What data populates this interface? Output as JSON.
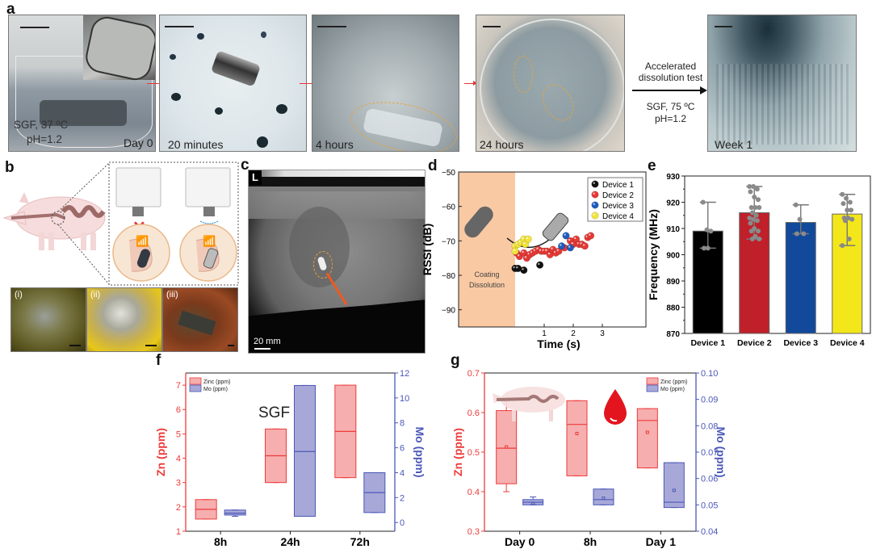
{
  "figure": {
    "panel_labels": {
      "a": "a",
      "b": "b",
      "c": "c",
      "d": "d",
      "e": "e",
      "f": "f",
      "g": "g"
    },
    "panel_a": {
      "photos": [
        {
          "caption": "Day 0",
          "overlay": "SGF, 37 ºC",
          "overlay2": "pH=1.2"
        },
        {
          "caption": "20 minutes"
        },
        {
          "caption": "4 hours"
        },
        {
          "caption": "24 hours"
        },
        {
          "caption": "Week 1"
        }
      ],
      "accelerated_label_1": "Accelerated",
      "accelerated_label_2": "dissolution test",
      "condition_1": "SGF, 75 ºC",
      "condition_2": "pH=1.2"
    },
    "panel_b": {
      "endoscopy_labels": [
        "(i)",
        "(ii)",
        "(iii)"
      ]
    },
    "panel_c": {
      "corner_label": "L",
      "scale_label": "20 mm"
    }
  },
  "chart_data": [
    {
      "id": "d",
      "type": "scatter",
      "title": "",
      "xlabel": "Time (s)",
      "ylabel": "RSSI (dB)",
      "ylim": [
        -95,
        -50
      ],
      "yticks": [
        -50,
        -60,
        -70,
        -80,
        -90
      ],
      "xticks": [
        1,
        2,
        3
      ],
      "shaded_region_label_1": "Coating",
      "shaded_region_label_2": "Dissolution",
      "legend": [
        "Device 1",
        "Device 2",
        "Device 3",
        "Device 4"
      ],
      "series": [
        {
          "name": "Device 1",
          "color": "#111111",
          "points": [
            [
              0.0,
              -78
            ],
            [
              0.1,
              -78
            ],
            [
              0.3,
              -78.5
            ],
            [
              0.85,
              -77
            ]
          ]
        },
        {
          "name": "Device 2",
          "color": "#e53935",
          "points": [
            [
              0.05,
              -73.5
            ],
            [
              0.15,
              -74.5
            ],
            [
              0.3,
              -73.5
            ],
            [
              0.4,
              -75
            ],
            [
              0.5,
              -74
            ],
            [
              0.6,
              -73.5
            ],
            [
              0.7,
              -73
            ],
            [
              0.8,
              -72.5
            ],
            [
              0.9,
              -73
            ],
            [
              1.0,
              -73
            ],
            [
              1.1,
              -73
            ],
            [
              1.2,
              -74
            ],
            [
              1.3,
              -72.5
            ],
            [
              1.4,
              -73.5
            ],
            [
              1.5,
              -73
            ],
            [
              1.7,
              -72
            ],
            [
              1.9,
              -70
            ],
            [
              2.0,
              -71
            ],
            [
              2.1,
              -69.5
            ],
            [
              2.2,
              -71
            ],
            [
              2.3,
              -71
            ],
            [
              2.4,
              -71.5
            ],
            [
              2.5,
              -69
            ],
            [
              2.6,
              -68.5
            ]
          ]
        },
        {
          "name": "Device 3",
          "color": "#1e5bbf",
          "points": [
            [
              1.6,
              -71.5
            ],
            [
              1.75,
              -68.5
            ],
            [
              1.9,
              -72
            ]
          ]
        },
        {
          "name": "Device 4",
          "color": "#f2e33c",
          "points": [
            [
              0.0,
              -71.5
            ],
            [
              0.0,
              -73
            ],
            [
              0.1,
              -71
            ],
            [
              0.2,
              -70.5
            ],
            [
              0.3,
              -69.5
            ],
            [
              0.35,
              -71
            ],
            [
              0.45,
              -69.5
            ]
          ]
        }
      ]
    },
    {
      "id": "e",
      "type": "bar",
      "title": "",
      "xlabel": "",
      "ylabel": "Frequency (MHz)",
      "ylim": [
        870,
        930
      ],
      "yticks": [
        870,
        880,
        890,
        900,
        910,
        920,
        930
      ],
      "categories": [
        "Device 1",
        "Device 2",
        "Device 3",
        "Device 4"
      ],
      "values": [
        909,
        916,
        912.3,
        915.5
      ],
      "err_low": [
        902.5,
        906,
        908,
        903.5
      ],
      "err_high": [
        920,
        926,
        919,
        923
      ],
      "colors": [
        "#000000",
        "#c0202a",
        "#12499a",
        "#f3e61b"
      ],
      "points": [
        [
          920,
          909.5,
          909,
          902.5,
          902.5
        ],
        [
          926,
          926,
          925,
          924,
          922,
          921,
          918,
          918,
          918,
          916,
          915,
          914,
          913.5,
          913,
          912,
          910,
          909,
          909,
          907,
          906,
          906
        ],
        [
          919,
          913.5,
          908,
          908
        ],
        [
          923,
          921.5,
          920,
          919.5,
          917,
          917,
          914,
          914,
          913.5,
          913,
          906,
          903.5
        ]
      ]
    },
    {
      "id": "f",
      "type": "box",
      "title": "SGF",
      "xlabel": "",
      "ylabel": "Zn (ppm)",
      "ylabel_right": "Mo (ppm)",
      "ylim": [
        1,
        7.5
      ],
      "ylim_right": [
        -0.7,
        12
      ],
      "yticks": [
        1,
        2,
        3,
        4,
        5,
        6,
        7
      ],
      "yticks_right": [
        0,
        2,
        4,
        6,
        8,
        10,
        12
      ],
      "categories": [
        "8h",
        "24h",
        "72h"
      ],
      "legend": [
        "Zinc (ppm)",
        "Mo (ppm)"
      ],
      "series": [
        {
          "name": "Zinc (ppm)",
          "axis": "left",
          "color": "#f08c8c",
          "boxes": [
            {
              "min": 1.5,
              "q1": 1.5,
              "median": 1.9,
              "q3": 2.3,
              "max": 2.3
            },
            {
              "min": 3.0,
              "q1": 3.0,
              "median": 4.1,
              "q3": 5.2,
              "max": 5.2
            },
            {
              "min": 3.2,
              "q1": 3.2,
              "median": 5.1,
              "q3": 7.0,
              "max": 7.0
            }
          ]
        },
        {
          "name": "Mo (ppm)",
          "axis": "right",
          "color": "#8e8ccc",
          "boxes": [
            {
              "min": 0.5,
              "q1": 0.6,
              "median": 0.75,
              "q3": 1.0,
              "max": 1.0
            },
            {
              "min": 0.5,
              "q1": 0.5,
              "median": 5.7,
              "q3": 11.0,
              "max": 11.0
            },
            {
              "min": 0.8,
              "q1": 0.8,
              "median": 2.4,
              "q3": 4.0,
              "max": 4.0
            }
          ]
        }
      ]
    },
    {
      "id": "g",
      "type": "box",
      "title": "",
      "xlabel": "",
      "ylabel": "Zn (ppm)",
      "ylabel_right": "Mo (ppm)",
      "ylim": [
        0.3,
        0.7
      ],
      "ylim_right": [
        0.04,
        0.1
      ],
      "yticks": [
        0.3,
        0.4,
        0.5,
        0.6,
        0.7
      ],
      "yticks_right": [
        0.04,
        0.05,
        0.06,
        0.07,
        0.08,
        0.09,
        0.1
      ],
      "categories": [
        "Day 0",
        "8h",
        "Day 1"
      ],
      "legend": [
        "Zinc (ppm)",
        "Mo (ppm)"
      ],
      "series": [
        {
          "name": "Zinc (ppm)",
          "axis": "left",
          "color": "#f08c8c",
          "boxes": [
            {
              "min": 0.4,
              "q1": 0.42,
              "median": 0.51,
              "mean": 0.513,
              "q3": 0.605,
              "max": 0.63
            },
            {
              "min": 0.44,
              "q1": 0.44,
              "median": 0.57,
              "mean": 0.547,
              "q3": 0.63,
              "max": 0.63
            },
            {
              "min": 0.46,
              "q1": 0.46,
              "median": 0.58,
              "mean": 0.55,
              "q3": 0.61,
              "max": 0.61
            }
          ]
        },
        {
          "name": "Mo (ppm)",
          "axis": "right",
          "color": "#8e8ccc",
          "boxes": [
            {
              "min": 0.05,
              "q1": 0.05,
              "median": 0.051,
              "mean": 0.0505,
              "q3": 0.052,
              "max": 0.053
            },
            {
              "min": 0.05,
              "q1": 0.05,
              "median": 0.052,
              "mean": 0.0525,
              "q3": 0.056,
              "max": 0.056
            },
            {
              "min": 0.049,
              "q1": 0.049,
              "median": 0.051,
              "mean": 0.0555,
              "q3": 0.066,
              "max": 0.066
            }
          ]
        }
      ]
    }
  ]
}
